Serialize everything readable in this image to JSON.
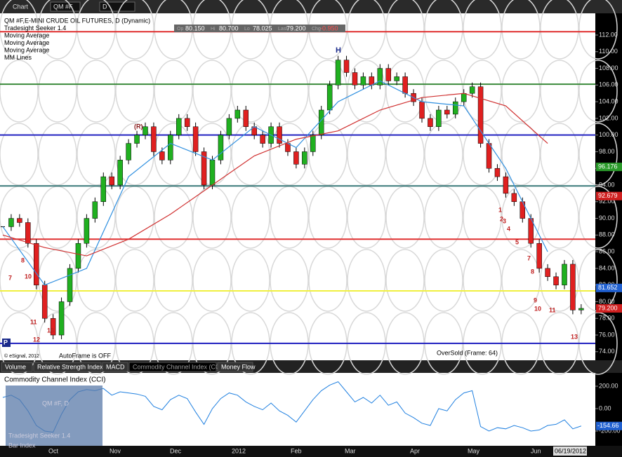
{
  "toolbar": {
    "title": "Chart",
    "symbol": "QM #F",
    "interval": "D"
  },
  "legend": [
    "QM #F,E-MINI CRUDE OIL FUTURES, D (Dynamic)",
    "Tradesight Seeker 1.4",
    "Moving Average",
    "Moving Average",
    "Moving Average",
    "MM Lines"
  ],
  "quote": [
    {
      "label": "Op",
      "value": "80.150"
    },
    {
      "label": "Hi",
      "value": "80.700"
    },
    {
      "label": "Lo",
      "value": "78.025"
    },
    {
      "label": "Last",
      "value": "79.200"
    },
    {
      "label": "Chg",
      "value": "-0.950"
    }
  ],
  "price": {
    "ylim": [
      74,
      112
    ],
    "yticks": [
      {
        "value": 112,
        "label": "112.00"
      },
      {
        "value": 110,
        "label": "110.00"
      },
      {
        "value": 108,
        "label": "108.00"
      },
      {
        "value": 106,
        "label": "106.00"
      },
      {
        "value": 104,
        "label": "104.00"
      },
      {
        "value": 102,
        "label": "102.00"
      },
      {
        "value": 100,
        "label": "100.00"
      },
      {
        "value": 98,
        "label": "98.00"
      },
      {
        "value": 96,
        "label": "96.00"
      },
      {
        "value": 94,
        "label": "94.00"
      },
      {
        "value": 92,
        "label": "92.00"
      },
      {
        "value": 90,
        "label": "90.00"
      },
      {
        "value": 88,
        "label": "88.00"
      },
      {
        "value": 86,
        "label": "86.00"
      },
      {
        "value": 84,
        "label": "84.00"
      },
      {
        "value": 82,
        "label": "82.00"
      },
      {
        "value": 80,
        "label": "80.00"
      },
      {
        "value": 78,
        "label": "78.00"
      },
      {
        "value": 76,
        "label": "76.00"
      },
      {
        "value": 74,
        "label": "74.00"
      }
    ],
    "closes": [
      89,
      90,
      89.5,
      87,
      82,
      78,
      76,
      80,
      84,
      87,
      90,
      92,
      95,
      94,
      97,
      99,
      100,
      101,
      98,
      97,
      100,
      102,
      101,
      98,
      94,
      97,
      100,
      102,
      103,
      101,
      100,
      99,
      101,
      99,
      98,
      96.5,
      98,
      100,
      103,
      106,
      109,
      107.5,
      106,
      107,
      106,
      108,
      106.5,
      107,
      105,
      104,
      102,
      101,
      103,
      102.5,
      104,
      105,
      105.8,
      99,
      96,
      95,
      93,
      92,
      90,
      87,
      84,
      83,
      82,
      84.5,
      79,
      79.2
    ],
    "ma_blue": [
      89,
      82,
      84,
      95,
      99,
      97,
      101,
      98.5,
      104,
      106.5,
      104,
      103.5,
      96,
      86
    ],
    "ma_red": [
      88,
      86.5,
      85.5,
      87.5,
      90.5,
      94,
      97.5,
      99.5,
      100.5,
      103,
      104.5,
      105,
      103.5,
      99
    ],
    "levels": [
      {
        "value": 112.4,
        "color": "#e03030"
      },
      {
        "value": 106.1,
        "color": "#3a8a3a"
      },
      {
        "value": 100,
        "color": "#2020c0"
      },
      {
        "value": 93.9,
        "color": "#3a7a7a"
      },
      {
        "value": 87.5,
        "color": "#e03030"
      },
      {
        "value": 81.3,
        "color": "#f0f040"
      },
      {
        "value": 75,
        "color": "#2020c0"
      }
    ],
    "markers": [
      {
        "value": 96.176,
        "label": "96.176",
        "color": "#2a9a2a"
      },
      {
        "value": 92.679,
        "label": "92.679",
        "color": "#d02020"
      },
      {
        "value": 81.652,
        "label": "81.652",
        "color": "#2060d0"
      },
      {
        "value": 79.2,
        "label": "79.200",
        "color": "#d02020"
      }
    ],
    "annotations": [
      "H",
      "(R)",
      "P",
      "7",
      "8",
      "10",
      "11",
      "12",
      "13",
      "1",
      "2",
      "3",
      "4",
      "5",
      "7",
      "8",
      "9",
      "10",
      "11",
      "13"
    ]
  },
  "footer": {
    "copyright": "© eSignal, 2012",
    "autoframe": "AutoFrame is OFF",
    "oversold": "OverSold (Frame: 64)"
  },
  "tabs": [
    "Volume",
    "Relative Strength Index",
    "MACD",
    "Commodity Channel Index (CCI)",
    "Money Flow"
  ],
  "cci": {
    "title": "Commodity Channel Index (CCI)",
    "ylim": [
      -250,
      260
    ],
    "yticks": [
      {
        "value": 200,
        "label": "200.00"
      },
      {
        "value": 0,
        "label": "0.00"
      },
      {
        "value": -200,
        "label": "-200.00"
      }
    ],
    "values": [
      100,
      120,
      80,
      -20,
      -150,
      -200,
      -210,
      -50,
      80,
      150,
      170,
      160,
      180,
      120,
      150,
      140,
      130,
      110,
      20,
      -10,
      80,
      120,
      90,
      -30,
      -140,
      0,
      90,
      140,
      120,
      60,
      20,
      -10,
      50,
      -20,
      -60,
      -120,
      -20,
      80,
      160,
      210,
      240,
      150,
      60,
      100,
      50,
      120,
      30,
      60,
      -40,
      -80,
      -130,
      -150,
      0,
      -20,
      80,
      140,
      160,
      -160,
      -200,
      -170,
      -180,
      -150,
      -170,
      -200,
      -190,
      -150,
      -140,
      -100,
      -180,
      -154.66
    ],
    "last_label": "-154.66",
    "overlay": [
      "QM #F, D",
      "Tradesight Seeker 1.4",
      "Bar Index"
    ]
  },
  "xaxis": [
    "Oct",
    "Nov",
    "Dec",
    "2012",
    "Feb",
    "Mar",
    "Apr",
    "May",
    "Jun",
    "06/19/2012"
  ]
}
